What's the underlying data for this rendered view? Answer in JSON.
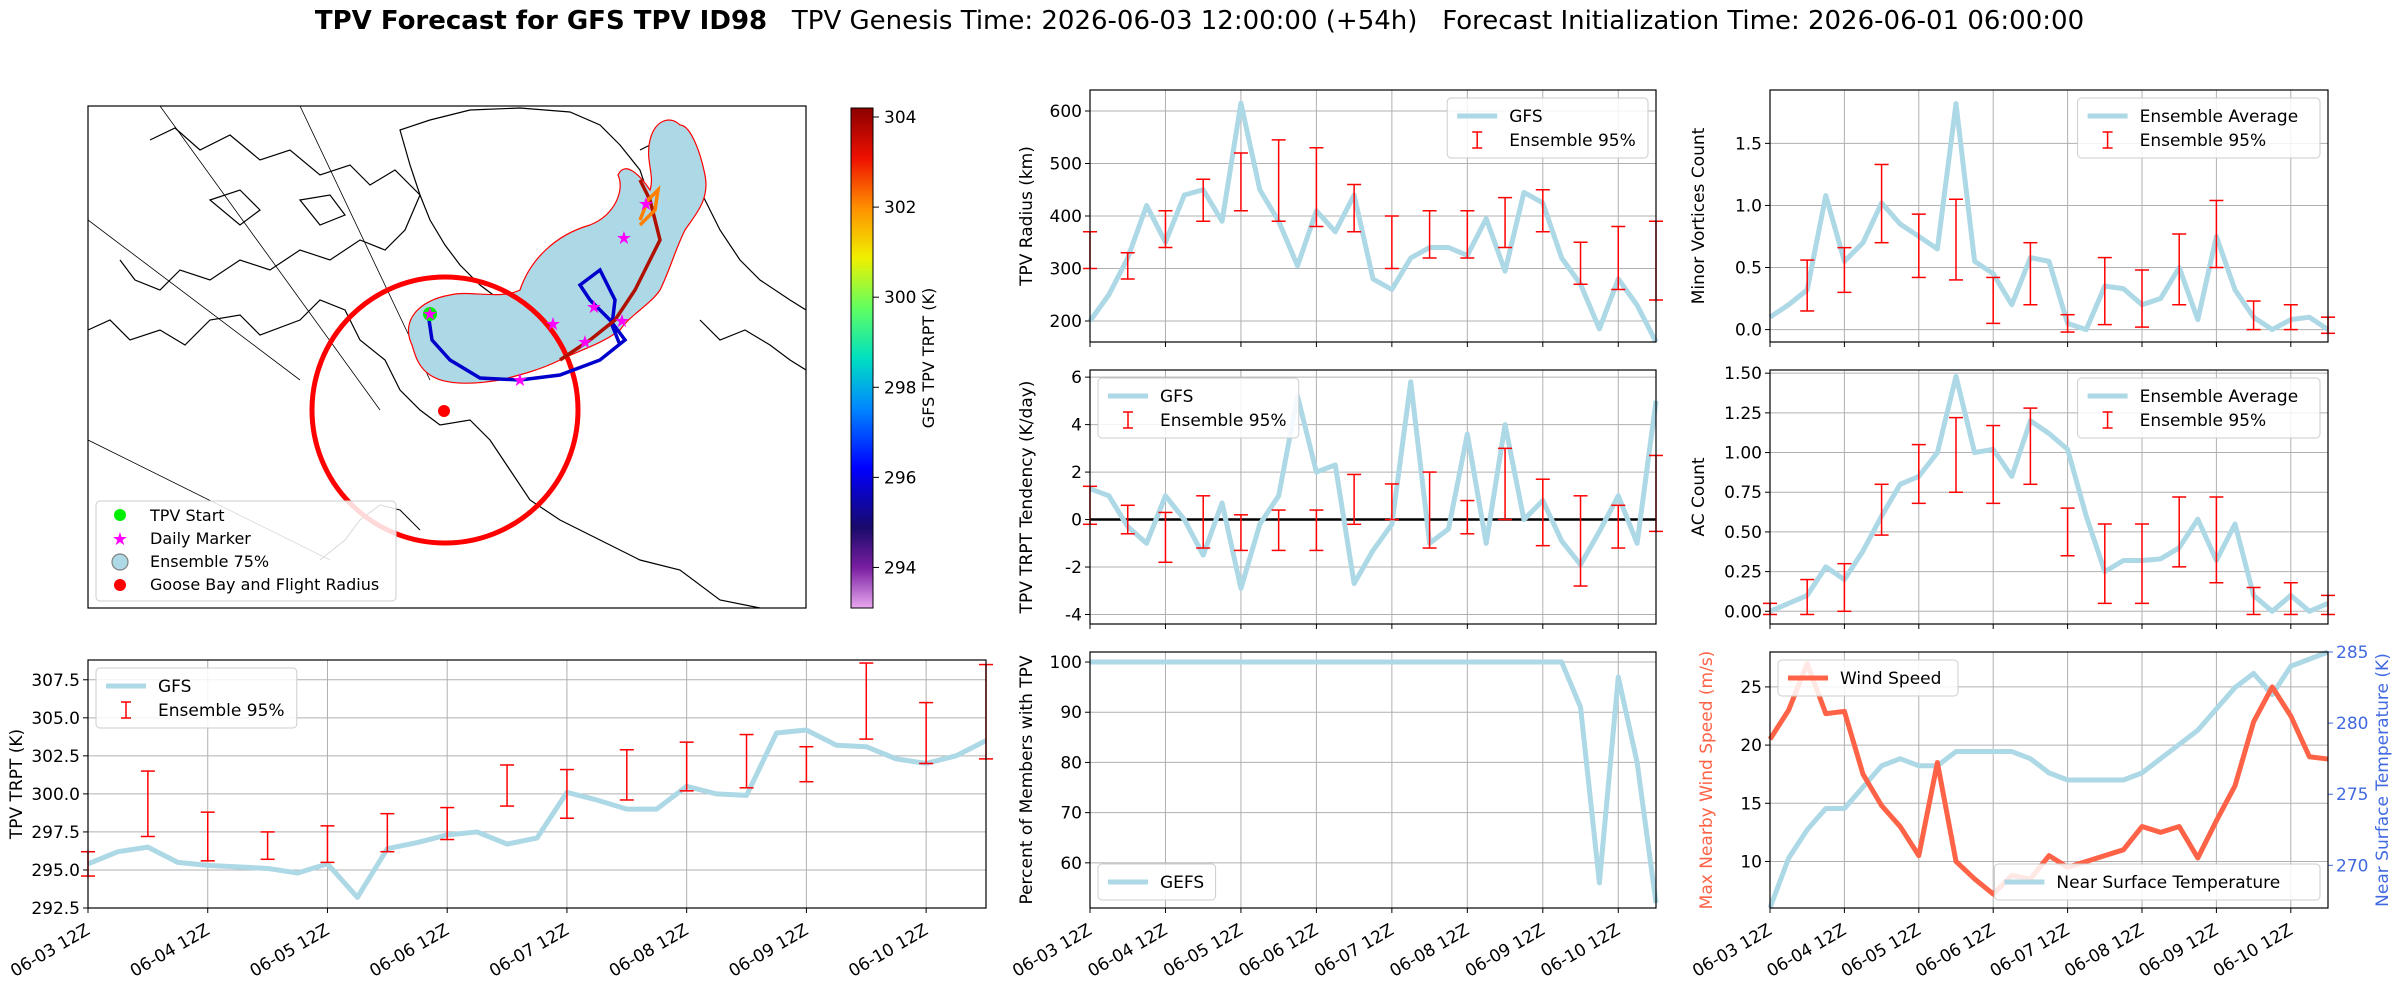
{
  "title": {
    "bold": "TPV Forecast for GFS TPV ID98",
    "genesis": "TPV Genesis Time: 2026-06-03 12:00:00 (+54h)",
    "init": "Forecast Initialization Time: 2026-06-01 06:00:00"
  },
  "colors": {
    "gfs_line": "#add8e6",
    "error_bar": "#ff0000",
    "wind": "#ff6347",
    "temp_axis": "#4169e1",
    "zero_line": "#000000"
  },
  "x_ticks": [
    "06-03 12Z",
    "06-04 12Z",
    "06-05 12Z",
    "06-06 12Z",
    "06-07 12Z",
    "06-08 12Z",
    "06-09 12Z",
    "06-10 12Z"
  ],
  "map": {
    "colorbar_label": "GFS TPV TRPT (K)",
    "colorbar_ticks": [
      294,
      296,
      298,
      300,
      302,
      304
    ],
    "colorbar_range": [
      293.1,
      304.2
    ],
    "legend": [
      {
        "label": "TPV Start",
        "icon": "green-dot"
      },
      {
        "label": "Daily Marker",
        "icon": "magenta-star"
      },
      {
        "label": "Ensemble 75%",
        "icon": "lightblue-circle"
      },
      {
        "label": "Goose Bay and Flight Radius",
        "icon": "red-dot"
      }
    ]
  },
  "chart_data": [
    {
      "id": "trpt",
      "type": "line",
      "ylabel": "TPV TRPT (K)",
      "ylim": [
        292.5,
        308.8
      ],
      "yticks": [
        292.5,
        295.0,
        297.5,
        300.0,
        302.5,
        305.0,
        307.5
      ],
      "ytick_decimals": 1,
      "legend": {
        "line": "GFS",
        "err": "Ensemble 95%",
        "loc": "upper left"
      },
      "series_values": [
        295.4,
        296.2,
        296.5,
        295.5,
        295.3,
        295.2,
        295.1,
        294.8,
        295.4,
        293.2,
        296.4,
        296.8,
        297.3,
        297.5,
        296.7,
        297.1,
        300.1,
        299.6,
        299.0,
        299.0,
        300.5,
        300.0,
        299.9,
        304.0,
        304.2,
        303.2,
        303.1,
        302.3,
        302.0,
        302.5,
        303.5
      ],
      "error_bars": [
        [
          0,
          294.6,
          296.2
        ],
        [
          2,
          297.2,
          301.5
        ],
        [
          4,
          295.6,
          298.8
        ],
        [
          6,
          295.7,
          297.5
        ],
        [
          8,
          295.5,
          297.9
        ],
        [
          10,
          296.2,
          298.7
        ],
        [
          12,
          297.0,
          299.1
        ],
        [
          14,
          299.2,
          301.9
        ],
        [
          16,
          298.4,
          301.6
        ],
        [
          18,
          299.6,
          302.9
        ],
        [
          20,
          300.2,
          303.4
        ],
        [
          22,
          300.4,
          303.9
        ],
        [
          24,
          300.8,
          303.1
        ],
        [
          26,
          303.6,
          308.6
        ],
        [
          28,
          302.0,
          306.0
        ],
        [
          30,
          302.3,
          308.5
        ]
      ]
    },
    {
      "id": "radius",
      "type": "line",
      "ylabel": "TPV Radius (km)",
      "ylim": [
        160,
        640
      ],
      "yticks": [
        200,
        300,
        400,
        500,
        600
      ],
      "ytick_decimals": 0,
      "legend": {
        "line": "GFS",
        "err": "Ensemble 95%",
        "loc": "upper right"
      },
      "series_values": [
        200,
        250,
        320,
        420,
        350,
        440,
        450,
        390,
        615,
        450,
        390,
        305,
        410,
        370,
        440,
        280,
        260,
        320,
        340,
        340,
        325,
        395,
        295,
        445,
        425,
        320,
        270,
        185,
        280,
        230,
        160
      ],
      "error_bars": [
        [
          0,
          300,
          370
        ],
        [
          2,
          280,
          330
        ],
        [
          4,
          340,
          410
        ],
        [
          6,
          390,
          470
        ],
        [
          8,
          410,
          520
        ],
        [
          10,
          390,
          545
        ],
        [
          12,
          380,
          530
        ],
        [
          14,
          370,
          460
        ],
        [
          16,
          300,
          400
        ],
        [
          18,
          320,
          410
        ],
        [
          20,
          320,
          410
        ],
        [
          22,
          340,
          435
        ],
        [
          24,
          370,
          450
        ],
        [
          26,
          270,
          350
        ],
        [
          28,
          260,
          380
        ],
        [
          30,
          240,
          390
        ]
      ]
    },
    {
      "id": "minor",
      "type": "line",
      "ylabel": "Minor Vortices Count",
      "ylim": [
        -0.1,
        1.93
      ],
      "yticks": [
        0.0,
        0.5,
        1.0,
        1.5
      ],
      "ytick_decimals": 1,
      "legend": {
        "line": "Ensemble Average",
        "err": "Ensemble 95%",
        "loc": "upper right"
      },
      "series_values": [
        0.1,
        0.2,
        0.32,
        1.08,
        0.55,
        0.7,
        1.02,
        0.85,
        0.75,
        0.65,
        1.82,
        0.55,
        0.45,
        0.2,
        0.58,
        0.55,
        0.05,
        0.0,
        0.35,
        0.33,
        0.2,
        0.25,
        0.5,
        0.08,
        0.75,
        0.32,
        0.1,
        0.0,
        0.08,
        0.1,
        0.0
      ],
      "error_bars": [
        [
          2,
          0.15,
          0.56
        ],
        [
          4,
          0.3,
          0.66
        ],
        [
          6,
          0.7,
          1.33
        ],
        [
          8,
          0.42,
          0.93
        ],
        [
          10,
          0.4,
          1.05
        ],
        [
          12,
          0.05,
          0.42
        ],
        [
          14,
          0.2,
          0.7
        ],
        [
          16,
          -0.02,
          0.12
        ],
        [
          18,
          0.04,
          0.58
        ],
        [
          20,
          0.02,
          0.48
        ],
        [
          22,
          0.2,
          0.77
        ],
        [
          24,
          0.5,
          1.04
        ],
        [
          26,
          0.0,
          0.23
        ],
        [
          28,
          0.0,
          0.2
        ],
        [
          30,
          -0.03,
          0.1
        ]
      ]
    },
    {
      "id": "tendency",
      "type": "line",
      "ylabel": "TPV TRPT Tendency (K/day)",
      "ylim": [
        -4.4,
        6.3
      ],
      "yticks": [
        -4,
        -2,
        0,
        2,
        4,
        6
      ],
      "ytick_decimals": 0,
      "zero_line": true,
      "legend": {
        "line": "GFS",
        "err": "Ensemble 95%",
        "loc": "upper left"
      },
      "series_values": [
        1.3,
        1.0,
        -0.3,
        -1.0,
        1.0,
        0.0,
        -1.5,
        0.7,
        -2.9,
        -0.2,
        1.0,
        5.2,
        2.0,
        2.3,
        -2.7,
        -1.3,
        -0.2,
        5.8,
        -1.0,
        -0.4,
        3.6,
        -1.0,
        4.0,
        0.0,
        0.8,
        -0.9,
        -1.9,
        -0.5,
        1.0,
        -1.0,
        5.0
      ],
      "error_bars": [
        [
          0,
          -0.2,
          1.4
        ],
        [
          2,
          -0.6,
          0.6
        ],
        [
          4,
          -1.8,
          0.3
        ],
        [
          6,
          -1.2,
          1.0
        ],
        [
          8,
          -1.3,
          0.2
        ],
        [
          10,
          -1.3,
          0.4
        ],
        [
          12,
          -1.3,
          0.4
        ],
        [
          14,
          -0.2,
          1.9
        ],
        [
          16,
          0.0,
          1.5
        ],
        [
          18,
          -1.2,
          2.0
        ],
        [
          20,
          -0.6,
          0.8
        ],
        [
          22,
          0.0,
          3.0
        ],
        [
          24,
          -1.1,
          1.7
        ],
        [
          26,
          -2.8,
          1.0
        ],
        [
          28,
          -1.2,
          0.6
        ],
        [
          30,
          -0.5,
          2.7
        ]
      ]
    },
    {
      "id": "ac",
      "type": "line",
      "ylabel": "AC Count",
      "ylim": [
        -0.08,
        1.52
      ],
      "yticks": [
        0.0,
        0.25,
        0.5,
        0.75,
        1.0,
        1.25,
        1.5
      ],
      "ytick_decimals": 2,
      "legend": {
        "line": "Ensemble Average",
        "err": "Ensemble 95%",
        "loc": "upper right"
      },
      "series_values": [
        0.0,
        0.05,
        0.1,
        0.28,
        0.2,
        0.38,
        0.6,
        0.8,
        0.85,
        1.0,
        1.48,
        1.0,
        1.02,
        0.85,
        1.2,
        1.12,
        1.02,
        0.6,
        0.25,
        0.32,
        0.32,
        0.33,
        0.4,
        0.58,
        0.32,
        0.55,
        0.1,
        0.0,
        0.1,
        0.0,
        0.05
      ],
      "error_bars": [
        [
          0,
          -0.02,
          0.05
        ],
        [
          2,
          -0.02,
          0.2
        ],
        [
          4,
          0.0,
          0.3
        ],
        [
          6,
          0.48,
          0.8
        ],
        [
          8,
          0.68,
          1.05
        ],
        [
          10,
          0.75,
          1.22
        ],
        [
          12,
          0.68,
          1.17
        ],
        [
          14,
          0.8,
          1.28
        ],
        [
          16,
          0.35,
          0.65
        ],
        [
          18,
          0.05,
          0.55
        ],
        [
          20,
          0.05,
          0.55
        ],
        [
          22,
          0.28,
          0.72
        ],
        [
          24,
          0.18,
          0.72
        ],
        [
          26,
          -0.02,
          0.15
        ],
        [
          28,
          -0.02,
          0.18
        ],
        [
          30,
          -0.02,
          0.1
        ]
      ]
    },
    {
      "id": "members",
      "type": "line",
      "ylabel": "Percent of Members with TPV",
      "ylim": [
        51,
        102
      ],
      "yticks": [
        60,
        70,
        80,
        90,
        100
      ],
      "ytick_decimals": 0,
      "legend": {
        "line": "GEFS",
        "loc": "lower left"
      },
      "series_values": [
        100,
        100,
        100,
        100,
        100,
        100,
        100,
        100,
        100,
        100,
        100,
        100,
        100,
        100,
        100,
        100,
        100,
        100,
        100,
        100,
        100,
        100,
        100,
        100,
        100,
        100,
        91,
        56,
        97,
        80,
        52
      ]
    },
    {
      "id": "wind_temp",
      "type": "line",
      "ylabel": "Max Nearby Wind Speed (m/s)",
      "ylim": [
        6,
        28
      ],
      "yticks": [
        10,
        15,
        20,
        25
      ],
      "ytick_decimals": 0,
      "legend": {
        "line": "Wind Speed",
        "loc": "upper left"
      },
      "series_values": [
        20.5,
        23.0,
        27.0,
        22.7,
        22.9,
        17.5,
        14.8,
        13.0,
        10.5,
        18.5,
        10.0,
        8.5,
        7.2,
        8.8,
        8.5,
        10.5,
        9.5,
        10.0,
        10.5,
        11.0,
        13.0,
        12.5,
        13.0,
        10.3,
        13.5,
        16.5,
        22.0,
        25.0,
        22.5,
        19.0,
        18.8
      ],
      "ylabel_right": "Near Surface Temperature (K)",
      "ylim_right": [
        267,
        285
      ],
      "yticks_right": [
        270,
        275,
        280,
        285
      ],
      "legend_right": {
        "line": "Near Surface Temperature",
        "loc": "lower right"
      },
      "series_right": [
        267.0,
        270.5,
        272.5,
        274.0,
        274.0,
        275.5,
        277.0,
        277.5,
        277.0,
        277.0,
        278.0,
        278.0,
        278.0,
        278.0,
        277.5,
        276.5,
        276.0,
        276.0,
        276.0,
        276.0,
        276.5,
        277.5,
        278.5,
        279.5,
        281.0,
        282.5,
        283.5,
        282.0,
        284.0,
        284.5,
        285.0
      ]
    }
  ]
}
